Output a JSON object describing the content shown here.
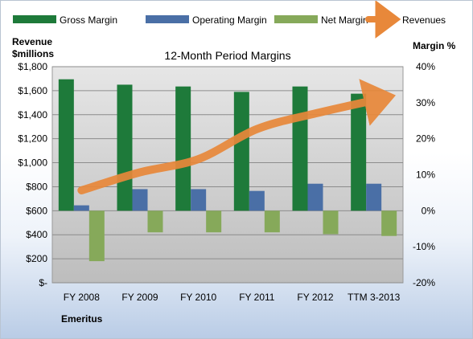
{
  "footer_label": "Emeritus",
  "chart_data": {
    "type": "bar",
    "title": "12-Month Period Margins",
    "categories": [
      "FY 2008",
      "FY 2009",
      "FY 2010",
      "FY 2011",
      "FY 2012",
      "TTM 3-2013"
    ],
    "y_left": {
      "label_line1": "Revenue",
      "label_line2": "$millions",
      "ylim": [
        0,
        1800
      ],
      "ticks": [
        0,
        200,
        400,
        600,
        800,
        1000,
        1200,
        1400,
        1600,
        1800
      ],
      "tick_labels": [
        "$-",
        "$200",
        "$400",
        "$600",
        "$800",
        "$1,000",
        "$1,200",
        "$1,400",
        "$1,600",
        "$1,800"
      ]
    },
    "y_right": {
      "label": "Margin %",
      "ylim": [
        -20,
        40
      ],
      "ticks": [
        -20,
        -10,
        0,
        10,
        20,
        30,
        40
      ],
      "tick_labels": [
        "-20%",
        "-10%",
        "0%",
        "10%",
        "20%",
        "30%",
        "40%"
      ]
    },
    "series": [
      {
        "name": "Gross Margin",
        "type": "bar",
        "axis": "right",
        "color": "#1e7a3a",
        "values": [
          36.5,
          35,
          34.5,
          33,
          34.5,
          32.5
        ]
      },
      {
        "name": "Operating Margin",
        "type": "bar",
        "axis": "right",
        "color": "#4a6fa6",
        "values": [
          1.5,
          6,
          6,
          5.5,
          7.5,
          7.5
        ]
      },
      {
        "name": "Net Margin",
        "type": "bar",
        "axis": "right",
        "color": "#86a95a",
        "values": [
          -14,
          -6,
          -6,
          -6,
          -6.5,
          -7
        ]
      },
      {
        "name": "Revenues",
        "type": "line",
        "axis": "left",
        "color": "#e8883a",
        "values": [
          770,
          920,
          1030,
          1280,
          1410,
          1520
        ]
      }
    ],
    "legend_position": "top",
    "grid": true,
    "plot_background": "#c8c8c8"
  }
}
